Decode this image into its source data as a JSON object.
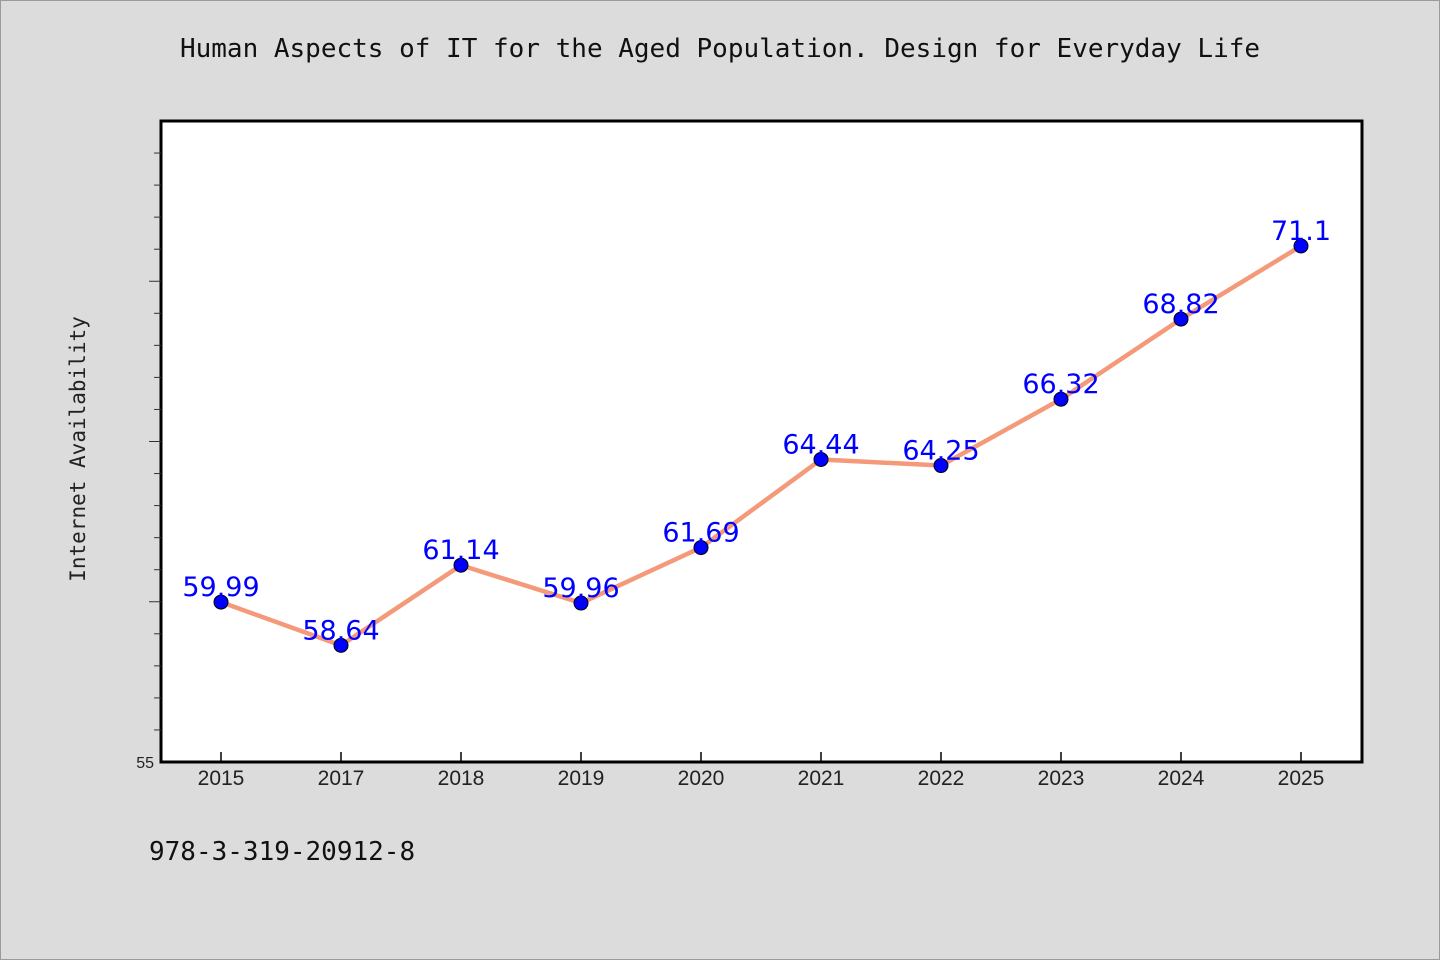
{
  "colors": {
    "figure_background": "#dcdcdc",
    "plot_background": "#ffffff",
    "line": "#f4997a",
    "marker": "#0000ff",
    "data_label": "#0000ff"
  },
  "caption": "978-3-319-20912-8",
  "chart_data": {
    "type": "line",
    "title": "Human Aspects of IT for the Aged Population. Design for Everyday Life",
    "xlabel": "",
    "ylabel": "Internet Availability",
    "categories": [
      "2015",
      "2017",
      "2018",
      "2019",
      "2020",
      "2021",
      "2022",
      "2023",
      "2024",
      "2025"
    ],
    "values": [
      59.99,
      58.64,
      61.14,
      59.96,
      61.69,
      64.44,
      64.25,
      66.32,
      68.82,
      71.1
    ],
    "data_labels": [
      "59.99",
      "58.64",
      "61.14",
      "59.96",
      "61.69",
      "64.44",
      "64.25",
      "66.32",
      "68.82",
      "71.1"
    ],
    "ylim": [
      55,
      75
    ],
    "y_tick_labels": [
      "55"
    ],
    "marker": "circle",
    "grid": false,
    "legend": "none"
  }
}
